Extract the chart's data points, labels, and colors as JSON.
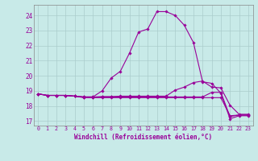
{
  "xlabel": "Windchill (Refroidissement éolien,°C)",
  "bg_color": "#c8eae8",
  "grid_color": "#aacccc",
  "line_color": "#990099",
  "xlim": [
    -0.5,
    23.5
  ],
  "ylim": [
    16.7,
    24.7
  ],
  "yticks": [
    17,
    18,
    19,
    20,
    21,
    22,
    23,
    24
  ],
  "xticks": [
    0,
    1,
    2,
    3,
    4,
    5,
    6,
    7,
    8,
    9,
    10,
    11,
    12,
    13,
    14,
    15,
    16,
    17,
    18,
    19,
    20,
    21,
    22,
    23
  ],
  "series": [
    {
      "x": [
        0,
        1,
        2,
        3,
        4,
        5,
        6,
        7,
        8,
        9,
        10,
        11,
        12,
        13,
        14,
        15,
        16,
        17,
        18,
        19,
        20,
        21,
        22,
        23
      ],
      "y": [
        18.8,
        18.7,
        18.7,
        18.7,
        18.65,
        18.6,
        18.6,
        19.0,
        19.85,
        20.3,
        21.5,
        22.9,
        23.1,
        24.25,
        24.25,
        24.0,
        23.35,
        22.2,
        19.6,
        19.5,
        18.85,
        17.15,
        17.35,
        17.35
      ]
    },
    {
      "x": [
        0,
        1,
        2,
        3,
        4,
        5,
        6,
        7,
        8,
        9,
        10,
        11,
        12,
        13,
        14,
        15,
        16,
        17,
        18,
        19,
        20,
        21,
        22,
        23
      ],
      "y": [
        18.8,
        18.7,
        18.7,
        18.7,
        18.65,
        18.55,
        18.55,
        18.55,
        18.55,
        18.55,
        18.55,
        18.55,
        18.55,
        18.55,
        18.55,
        18.55,
        18.55,
        18.55,
        18.55,
        18.55,
        18.55,
        17.35,
        17.4,
        17.4
      ]
    },
    {
      "x": [
        0,
        1,
        2,
        3,
        4,
        5,
        6,
        7,
        8,
        9,
        10,
        11,
        12,
        13,
        14,
        15,
        16,
        17,
        18,
        19,
        20,
        21,
        22,
        23
      ],
      "y": [
        18.8,
        18.7,
        18.7,
        18.7,
        18.65,
        18.6,
        18.6,
        18.6,
        18.6,
        18.6,
        18.6,
        18.6,
        18.6,
        18.6,
        18.6,
        18.6,
        18.6,
        18.6,
        18.6,
        18.9,
        18.9,
        17.3,
        17.4,
        17.4
      ]
    },
    {
      "x": [
        0,
        1,
        2,
        3,
        4,
        5,
        6,
        7,
        8,
        9,
        10,
        11,
        12,
        13,
        14,
        15,
        16,
        17,
        18,
        19,
        20,
        21,
        22,
        23
      ],
      "y": [
        18.8,
        18.7,
        18.7,
        18.7,
        18.65,
        18.58,
        18.58,
        18.62,
        18.62,
        18.65,
        18.65,
        18.65,
        18.65,
        18.65,
        18.65,
        19.05,
        19.25,
        19.55,
        19.65,
        19.25,
        19.2,
        18.05,
        17.45,
        17.45
      ]
    }
  ]
}
